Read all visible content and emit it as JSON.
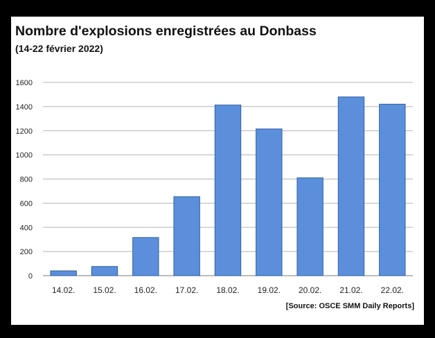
{
  "chart_data": {
    "type": "bar",
    "title": "Nombre d'explosions enregistrées au Donbass",
    "subtitle": "(14-22 février 2022)",
    "categories": [
      "14.02.",
      "15.02.",
      "16.02.",
      "17.02.",
      "18.02.",
      "19.02.",
      "20.02.",
      "21.02.",
      "22.02."
    ],
    "values": [
      40,
      76,
      316,
      654,
      1413,
      1215,
      810,
      1480,
      1420
    ],
    "ylim": [
      0,
      1600
    ],
    "yticks": [
      0,
      200,
      400,
      600,
      800,
      1000,
      1200,
      1400,
      1600
    ],
    "grid": true,
    "bar_color": "#5b8fdb",
    "bar_edge": "#2f5f9f",
    "source": "[Source: OSCE SMM Daily Reports]"
  }
}
